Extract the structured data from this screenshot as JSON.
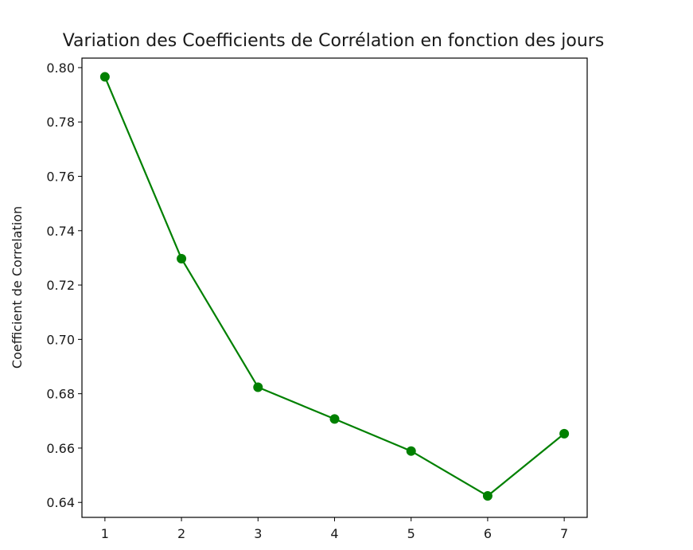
{
  "chart_data": {
    "type": "line",
    "title": "Variation des Coefficients de Corrélation en fonction des jours",
    "xlabel": "",
    "ylabel": "Coefficient de Correlation",
    "x": [
      1,
      2,
      3,
      4,
      5,
      6,
      7
    ],
    "x_ticks": [
      "1",
      "2",
      "3",
      "4",
      "5",
      "6",
      "7"
    ],
    "y_ticks": [
      "0.64",
      "0.66",
      "0.68",
      "0.70",
      "0.72",
      "0.74",
      "0.76",
      "0.78",
      "0.80"
    ],
    "xlim": [
      0.7,
      7.3
    ],
    "ylim": [
      0.6345,
      0.8035
    ],
    "series": [
      {
        "values": [
          0.7966,
          0.7297,
          0.6824,
          0.6707,
          0.6589,
          0.6424,
          0.6653
        ],
        "color": "#008000",
        "marker": "circle"
      }
    ],
    "grid": false,
    "legend": "none"
  }
}
